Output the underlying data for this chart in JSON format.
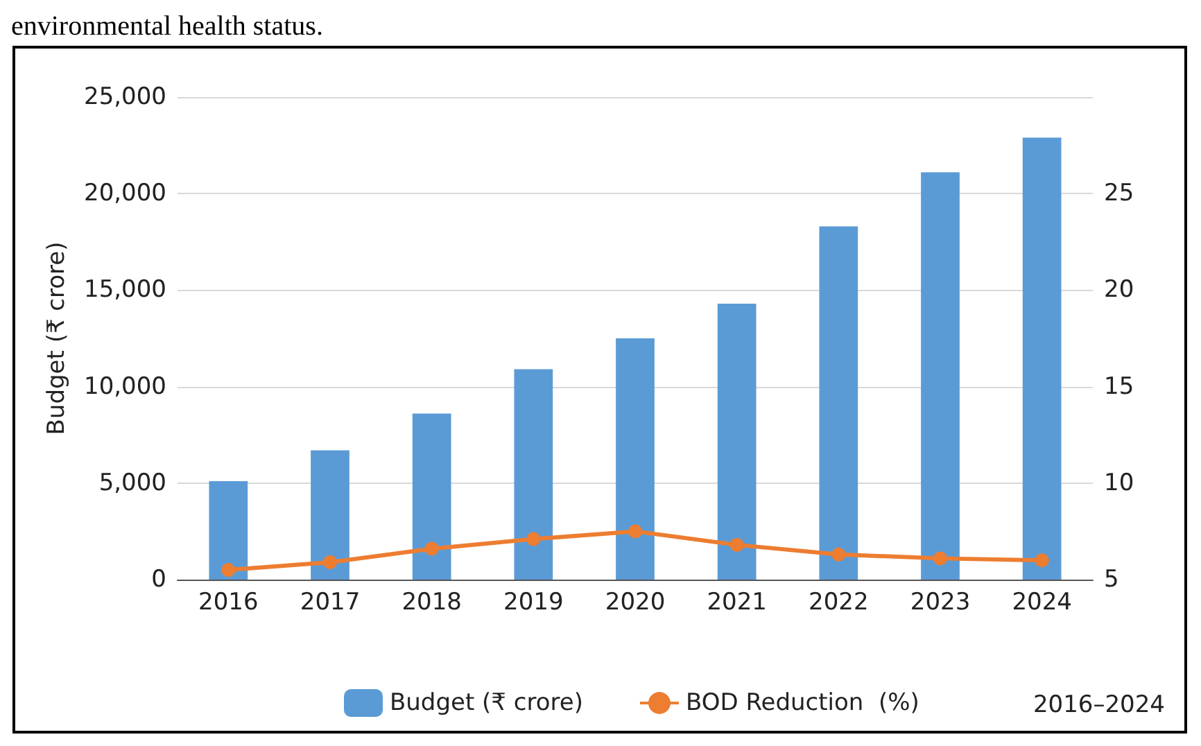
{
  "chart_data": {
    "type": "bar",
    "categories": [
      "2016",
      "2017",
      "2018",
      "2019",
      "2020",
      "2021",
      "2022",
      "2023",
      "2024"
    ],
    "series": [
      {
        "name": "Budget (₹ crore)",
        "color": "#5b9bd5",
        "values": [
          5100,
          6700,
          8600,
          10900,
          12500,
          14300,
          18300,
          21100,
          22900
        ]
      },
      {
        "name": "BOD Reduction  (%)",
        "type": "line",
        "axis": "y2",
        "color": "#ed7d31",
        "values": [
          5.5,
          5.9,
          6.6,
          7.1,
          7.5,
          6.8,
          6.3,
          6.1,
          6.0
        ]
      }
    ],
    "ylabel": "Budget (₹ crore)",
    "ylim": [
      0,
      25000
    ],
    "yticks": [
      0,
      {
        "value": 5000,
        "label": "5,000"
      },
      {
        "value": 10000,
        "label": "10,000"
      },
      {
        "value": 15000,
        "label": "15,000"
      },
      {
        "value": 20000,
        "label": "20,000"
      },
      {
        "value": 25000,
        "label": "25,000"
      }
    ],
    "y2lim": [
      5,
      30
    ],
    "y2ticks": [
      5,
      10,
      15,
      20,
      25
    ],
    "annotations": [
      "environmental health status.",
      "2016–2024"
    ],
    "grid": "y",
    "legend": "bottom",
    "marker": "circle"
  }
}
